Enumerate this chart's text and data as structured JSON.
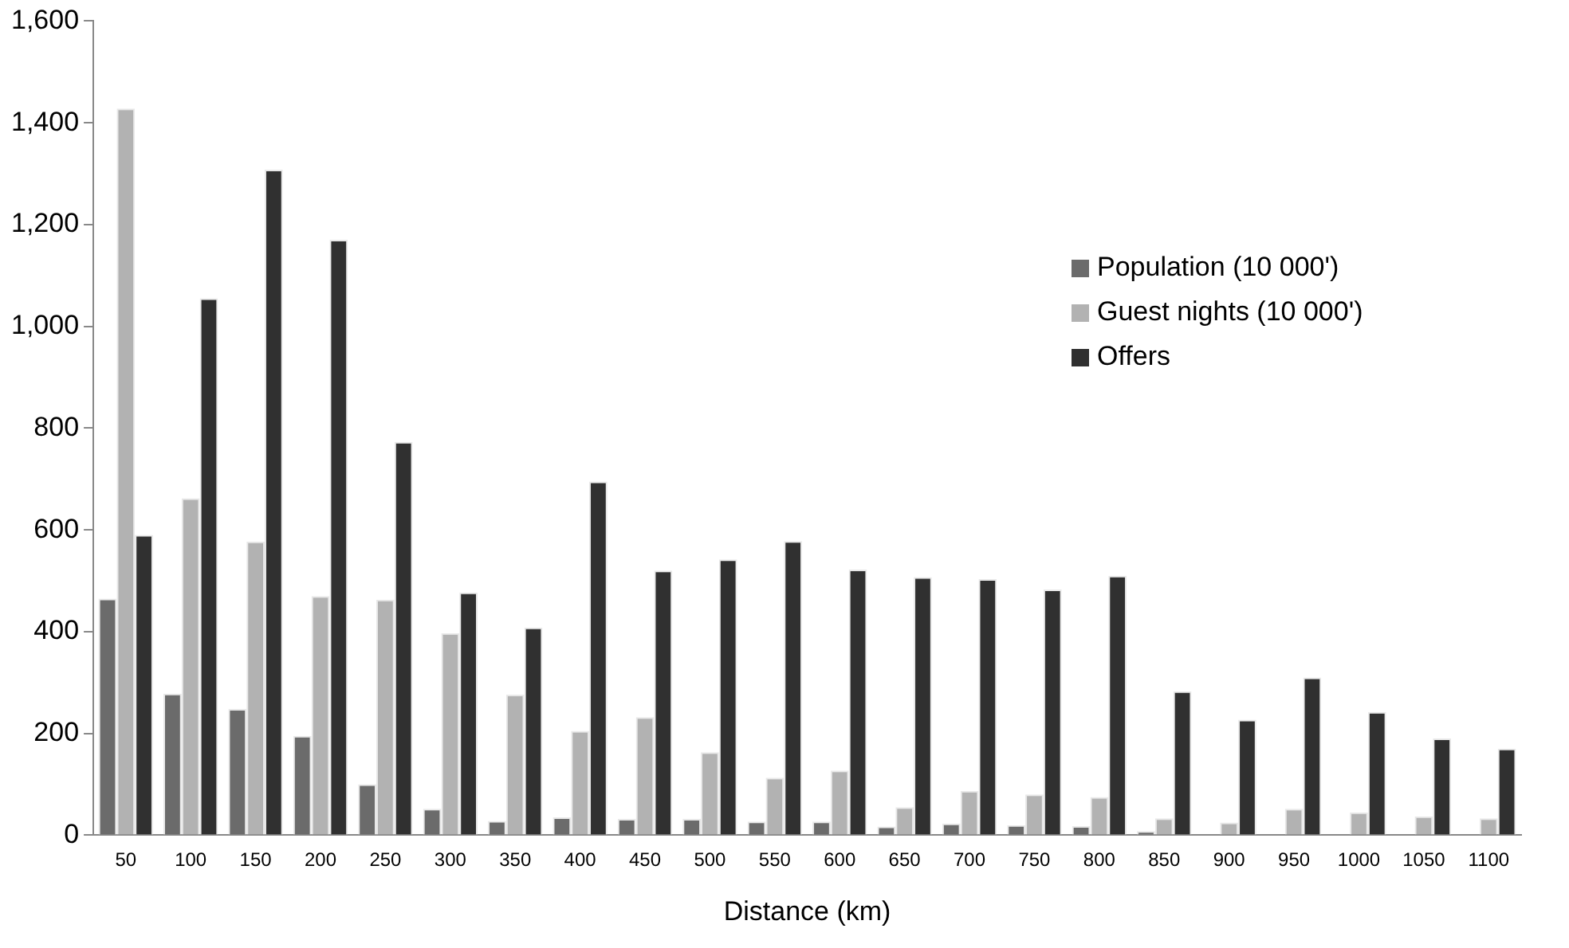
{
  "chart_data": {
    "type": "bar",
    "xlabel": "Distance (km)",
    "categories": [
      "50",
      "100",
      "150",
      "200",
      "250",
      "300",
      "350",
      "400",
      "450",
      "500",
      "550",
      "600",
      "650",
      "700",
      "750",
      "800",
      "850",
      "900",
      "950",
      "1000",
      "1050",
      "1100"
    ],
    "series": [
      {
        "name": "Population (10 000')",
        "color": "#6b6b6b",
        "values": [
          465,
          278,
          248,
          195,
          100,
          52,
          28,
          35,
          32,
          32,
          27,
          27,
          17,
          23,
          20,
          18,
          8,
          null,
          null,
          null,
          null,
          null
        ]
      },
      {
        "name": "Guest nights (10 000')",
        "color": "#b2b2b2",
        "values": [
          1428,
          662,
          577,
          470,
          463,
          397,
          276,
          205,
          232,
          163,
          113,
          127,
          55,
          87,
          80,
          75,
          33,
          25,
          52,
          45,
          37,
          33
        ]
      },
      {
        "name": "Offers",
        "color": "#303030",
        "values": [
          590,
          1055,
          1308,
          1170,
          773,
          477,
          408,
          695,
          520,
          542,
          578,
          522,
          507,
          503,
          483,
          510,
          283,
          227,
          310,
          242,
          190,
          170
        ]
      }
    ],
    "ylim": [
      0,
      1600
    ],
    "yticks": [
      0,
      200,
      400,
      600,
      800,
      {
        "value": 1000,
        "label": "1,000"
      },
      {
        "value": 1200,
        "label": "1,200"
      },
      {
        "value": 1400,
        "label": "1,400"
      },
      {
        "value": 1600,
        "label": "1,600"
      }
    ],
    "grid": false,
    "legend": "right"
  }
}
